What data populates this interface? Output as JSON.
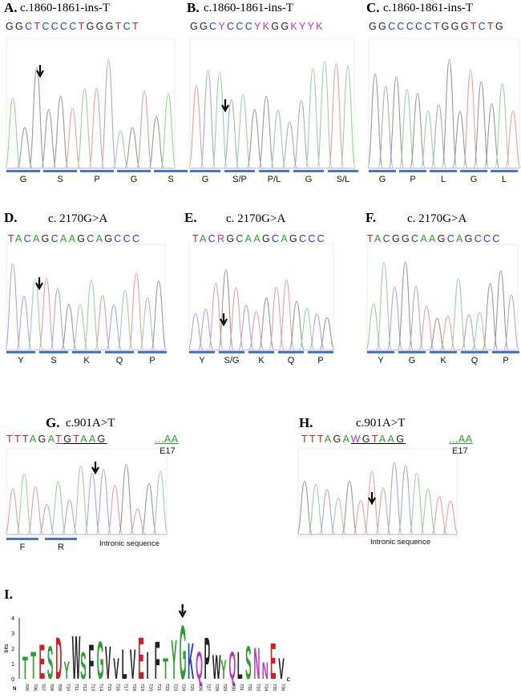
{
  "panels": [
    {
      "label": "A.",
      "title": "c.1860-1861-ins-T",
      "seq": "GGCTCCCCTGGGTCT",
      "aa": [
        "G",
        "S",
        "P",
        "G",
        "S"
      ]
    },
    {
      "label": "B.",
      "title": "c.1860-1861-ins-T",
      "seq": "GGCYCCCYKGGKYYK",
      "aa": [
        "G",
        "S/P",
        "P/L",
        "G",
        "S/L"
      ]
    },
    {
      "label": "C.",
      "title": "c.1860-1861-ins-T",
      "seq": "GGCCCCCTGGGTCTG",
      "aa": [
        "G",
        "P",
        "L",
        "G",
        "L"
      ]
    },
    {
      "label": "D.",
      "title": "c. 2170G>A",
      "seq": "TACAGCAAGCAGCCC",
      "aa": [
        "Y",
        "S",
        "K",
        "Q",
        "P"
      ]
    },
    {
      "label": "E.",
      "title": "c. 2170G>A",
      "seq": "TACRGCAAGCAGCCC",
      "aa": [
        "Y",
        "S/G",
        "K",
        "Q",
        "P"
      ]
    },
    {
      "label": "F.",
      "title": "c. 2170G>A",
      "seq": "TACGGCAAGCAGCCC",
      "aa": [
        "Y",
        "G",
        "K",
        "Q",
        "P"
      ]
    },
    {
      "label": "G.",
      "title": "c.901A>T",
      "seq": "TTTAGATGTAAG",
      "aa": [
        "F",
        "R"
      ],
      "tail": "...AA",
      "exon": "E17",
      "intronic": "Intronic sequence"
    },
    {
      "label": "H.",
      "title": "c.901A>T",
      "seq": "TTTAGAWGTAAG",
      "aa": [],
      "tail": "...AA",
      "exon": "E17",
      "intronic": "Intronic sequence"
    }
  ],
  "logo": {
    "label": "I.",
    "ylabel": "bits",
    "yticks": [
      "0",
      "1",
      "2",
      "3",
      "4"
    ],
    "n_term": "N",
    "c_term": "C",
    "positions": [
      "705",
      "706",
      "707",
      "708",
      "709",
      "710",
      "711",
      "712",
      "713",
      "714",
      "715",
      "716",
      "717",
      "718",
      "719",
      "720",
      "721",
      "722",
      "723",
      "724",
      "725",
      "726",
      "727",
      "728",
      "729",
      "730",
      "731",
      "732",
      "733",
      "734",
      "735",
      "736"
    ],
    "letters": [
      "T",
      "T",
      "E",
      "S",
      "D",
      "Y",
      "W",
      "S",
      "F",
      "G",
      "V",
      "V",
      "L",
      "V",
      "E",
      "I",
      "F",
      "T",
      "Y",
      "G",
      "K",
      "Q",
      "P",
      "W",
      "Y",
      "Q",
      "L",
      "S",
      "N",
      "N",
      "E",
      "V"
    ]
  },
  "colors": {
    "A": "#2aa02a",
    "C": "#2040c8",
    "G": "#222222",
    "T": "#d02020",
    "ambig": "#c030c0"
  }
}
